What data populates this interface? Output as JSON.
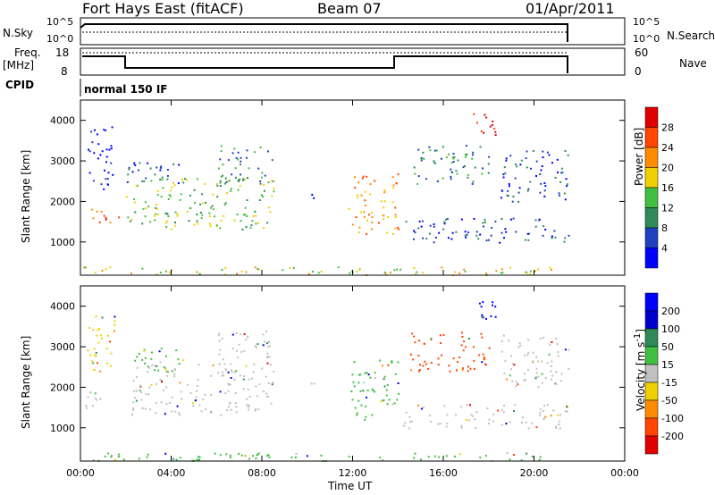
{
  "header": {
    "station": "Fort Hays East (fitACF)",
    "beam": "Beam 07",
    "date": "01/Apr/2011"
  },
  "side_labels": {
    "nsky": "N.Sky",
    "freq_line1": "Freq.",
    "freq_line2": "[MHz]",
    "cpid": "CPID",
    "nsearch": "N.Search",
    "nave": "Nave",
    "cpid_value": "normal 150 IF"
  },
  "noise_axis": {
    "left_top": "10^5",
    "left_bottom": "10^0",
    "right_top": "10^5",
    "right_bottom": "10^0"
  },
  "freq_axis": {
    "left_top": "18",
    "left_bottom": "8",
    "right_top": "60",
    "right_bottom": "0"
  },
  "colors": {
    "power": [
      "#0000ff",
      "#2040c0",
      "#2e8b57",
      "#40c040",
      "#f0d000",
      "#ff8c00",
      "#ff4500",
      "#e00000"
    ],
    "velocity": [
      "#e00000",
      "#ff4500",
      "#ff8c00",
      "#f0d000",
      "#c0c0c0",
      "#40c040",
      "#2e8b57",
      "#0000cd",
      "#0000ff"
    ]
  },
  "chart_data": [
    {
      "type": "heatmap",
      "title": "Power",
      "xlabel": "Time UT",
      "ylabel": "Slant Range [km]",
      "x_ticks": [
        "00:00",
        "04:00",
        "08:00",
        "12:00",
        "16:00",
        "20:00",
        "00:00"
      ],
      "y_ticks": [
        "1000",
        "2000",
        "3000",
        "4000"
      ],
      "xlim_hours": [
        0,
        24
      ],
      "ylim_km": [
        180,
        4500
      ],
      "colorbar_label": "Power [dB]",
      "colorbar_ticks": [
        "28",
        "24",
        "20",
        "16",
        "12",
        "8",
        "4"
      ]
    },
    {
      "type": "heatmap",
      "title": "Velocity",
      "xlabel": "Time UT",
      "ylabel": "Slant Range [km]",
      "x_ticks": [
        "00:00",
        "04:00",
        "08:00",
        "12:00",
        "16:00",
        "20:00",
        "00:00"
      ],
      "y_ticks": [
        "1000",
        "2000",
        "3000",
        "4000"
      ],
      "xlim_hours": [
        0,
        24
      ],
      "ylim_km": [
        180,
        4500
      ],
      "colorbar_label": "Velocity [m s^-1]",
      "colorbar_ticks": [
        "200",
        "100",
        "50",
        "15",
        "-15",
        "-50",
        "-100",
        "-200"
      ]
    }
  ],
  "time_label": "Time UT"
}
